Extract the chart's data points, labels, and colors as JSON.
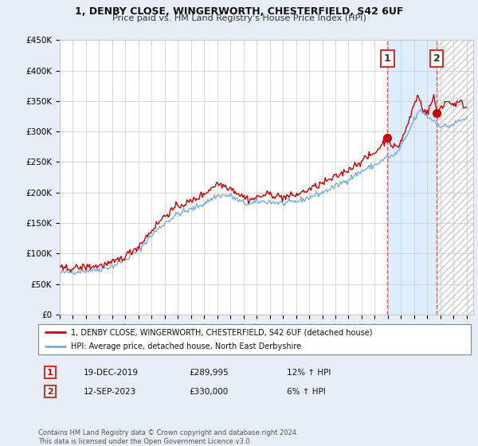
{
  "title_line1": "1, DENBY CLOSE, WINGERWORTH, CHESTERFIELD, S42 6UF",
  "title_line2": "Price paid vs. HM Land Registry's House Price Index (HPI)",
  "ylabel_ticks": [
    "£0",
    "£50K",
    "£100K",
    "£150K",
    "£200K",
    "£250K",
    "£300K",
    "£350K",
    "£400K",
    "£450K"
  ],
  "ytick_values": [
    0,
    50000,
    100000,
    150000,
    200000,
    250000,
    300000,
    350000,
    400000,
    450000
  ],
  "ylim": [
    0,
    450000
  ],
  "xlim_start": 1995.0,
  "xlim_end": 2026.5,
  "xtick_years": [
    1995,
    1996,
    1997,
    1998,
    1999,
    2000,
    2001,
    2002,
    2003,
    2004,
    2005,
    2006,
    2007,
    2008,
    2009,
    2010,
    2011,
    2012,
    2013,
    2014,
    2015,
    2016,
    2017,
    2018,
    2019,
    2020,
    2021,
    2022,
    2023,
    2024,
    2025,
    2026
  ],
  "background_color": "#e8eef7",
  "plot_bg_color": "#ffffff",
  "grid_color": "#c8c8c8",
  "red_line_color": "#cc0000",
  "blue_line_color": "#7aaddd",
  "dashed_red_color": "#dd4444",
  "sale1_x": 2019.97,
  "sale1_y": 289995,
  "sale1_label": "1",
  "sale2_x": 2023.71,
  "sale2_y": 330000,
  "sale2_label": "2",
  "shade_between_color": "#ddeeff",
  "hatch_color": "#cccccc",
  "legend_red": "1, DENBY CLOSE, WINGERWORTH, CHESTERFIELD, S42 6UF (detached house)",
  "legend_blue": "HPI: Average price, detached house, North East Derbyshire",
  "table_row1_num": "1",
  "table_row1_date": "19-DEC-2019",
  "table_row1_price": "£289,995",
  "table_row1_hpi": "12% ↑ HPI",
  "table_row2_num": "2",
  "table_row2_date": "12-SEP-2023",
  "table_row2_price": "£330,000",
  "table_row2_hpi": "6% ↑ HPI",
  "footer": "Contains HM Land Registry data © Crown copyright and database right 2024.\nThis data is licensed under the Open Government Licence v3.0."
}
